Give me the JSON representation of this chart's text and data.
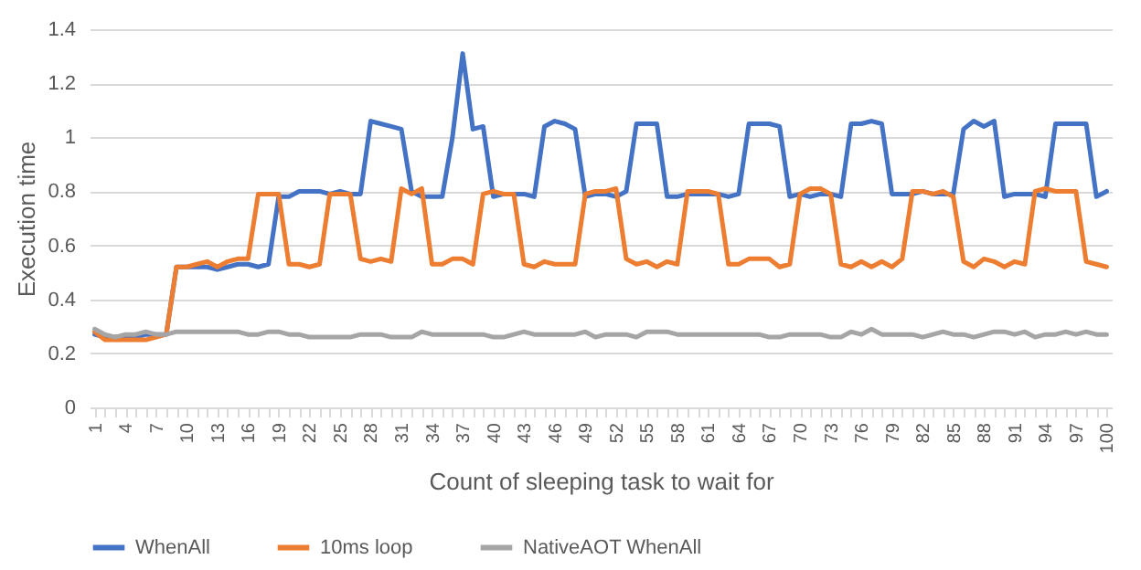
{
  "chart_data": {
    "type": "line",
    "xlabel": "Count of sleeping task to wait for",
    "ylabel": "Execution time",
    "categories": [
      "1",
      null,
      null,
      "4",
      null,
      null,
      "7",
      null,
      null,
      "10",
      null,
      null,
      "13",
      null,
      null,
      "16",
      null,
      null,
      "19",
      null,
      null,
      "22",
      null,
      null,
      "25",
      null,
      null,
      "28",
      null,
      null,
      "31",
      null,
      null,
      "34",
      null,
      null,
      "37",
      null,
      null,
      "40",
      null,
      null,
      "43",
      null,
      null,
      "46",
      null,
      null,
      "49",
      null,
      null,
      "52",
      null,
      null,
      "55",
      null,
      null,
      "58",
      null,
      null,
      "61",
      null,
      null,
      "64",
      null,
      null,
      "67",
      null,
      null,
      "70",
      null,
      null,
      "73",
      null,
      null,
      "76",
      null,
      null,
      "79",
      null,
      null,
      "82",
      null,
      null,
      "85",
      null,
      null,
      "88",
      null,
      null,
      "91",
      null,
      null,
      "94",
      null,
      null,
      "97",
      null,
      null,
      "100"
    ],
    "series": [
      {
        "name": "WhenAll",
        "color": "#4472c4",
        "values": [
          0.27,
          0.26,
          0.26,
          0.26,
          0.26,
          0.27,
          0.27,
          0.27,
          0.52,
          0.52,
          0.52,
          0.52,
          0.51,
          0.52,
          0.53,
          0.53,
          0.52,
          0.53,
          0.78,
          0.78,
          0.8,
          0.8,
          0.8,
          0.79,
          0.8,
          0.79,
          0.79,
          1.06,
          1.05,
          1.04,
          1.03,
          0.8,
          0.78,
          0.78,
          0.78,
          1.0,
          1.31,
          1.03,
          1.04,
          0.78,
          0.79,
          0.79,
          0.79,
          0.78,
          1.04,
          1.06,
          1.05,
          1.03,
          0.78,
          0.79,
          0.79,
          0.78,
          0.8,
          1.05,
          1.05,
          1.05,
          0.78,
          0.78,
          0.79,
          0.79,
          0.79,
          0.79,
          0.78,
          0.79,
          1.05,
          1.05,
          1.05,
          1.04,
          0.78,
          0.79,
          0.78,
          0.79,
          0.79,
          0.78,
          1.05,
          1.05,
          1.06,
          1.05,
          0.79,
          0.79,
          0.79,
          0.8,
          0.79,
          0.79,
          0.79,
          1.03,
          1.06,
          1.04,
          1.06,
          0.78,
          0.79,
          0.79,
          0.79,
          0.78,
          1.05,
          1.05,
          1.05,
          1.05,
          0.78,
          0.8
        ]
      },
      {
        "name": "10ms loop",
        "color": "#ed7d31",
        "values": [
          0.28,
          0.25,
          0.25,
          0.25,
          0.25,
          0.25,
          0.26,
          0.27,
          0.52,
          0.52,
          0.53,
          0.54,
          0.52,
          0.54,
          0.55,
          0.55,
          0.79,
          0.79,
          0.79,
          0.53,
          0.53,
          0.52,
          0.53,
          0.79,
          0.79,
          0.79,
          0.55,
          0.54,
          0.55,
          0.54,
          0.81,
          0.79,
          0.81,
          0.53,
          0.53,
          0.55,
          0.55,
          0.53,
          0.79,
          0.8,
          0.79,
          0.79,
          0.53,
          0.52,
          0.54,
          0.53,
          0.53,
          0.53,
          0.79,
          0.8,
          0.8,
          0.81,
          0.55,
          0.53,
          0.54,
          0.52,
          0.54,
          0.53,
          0.8,
          0.8,
          0.8,
          0.79,
          0.53,
          0.53,
          0.55,
          0.55,
          0.55,
          0.52,
          0.53,
          0.79,
          0.81,
          0.81,
          0.79,
          0.53,
          0.52,
          0.54,
          0.52,
          0.54,
          0.52,
          0.55,
          0.8,
          0.8,
          0.79,
          0.8,
          0.78,
          0.54,
          0.52,
          0.55,
          0.54,
          0.52,
          0.54,
          0.53,
          0.8,
          0.81,
          0.8,
          0.8,
          0.8,
          0.54,
          0.53,
          0.52
        ]
      },
      {
        "name": "NativeAOT WhenAll",
        "color": "#a5a5a5",
        "values": [
          0.29,
          0.27,
          0.26,
          0.27,
          0.27,
          0.28,
          0.27,
          0.27,
          0.28,
          0.28,
          0.28,
          0.28,
          0.28,
          0.28,
          0.28,
          0.27,
          0.27,
          0.28,
          0.28,
          0.27,
          0.27,
          0.26,
          0.26,
          0.26,
          0.26,
          0.26,
          0.27,
          0.27,
          0.27,
          0.26,
          0.26,
          0.26,
          0.28,
          0.27,
          0.27,
          0.27,
          0.27,
          0.27,
          0.27,
          0.26,
          0.26,
          0.27,
          0.28,
          0.27,
          0.27,
          0.27,
          0.27,
          0.27,
          0.28,
          0.26,
          0.27,
          0.27,
          0.27,
          0.26,
          0.28,
          0.28,
          0.28,
          0.27,
          0.27,
          0.27,
          0.27,
          0.27,
          0.27,
          0.27,
          0.27,
          0.27,
          0.26,
          0.26,
          0.27,
          0.27,
          0.27,
          0.27,
          0.26,
          0.26,
          0.28,
          0.27,
          0.29,
          0.27,
          0.27,
          0.27,
          0.27,
          0.26,
          0.27,
          0.28,
          0.27,
          0.27,
          0.26,
          0.27,
          0.28,
          0.28,
          0.27,
          0.28,
          0.26,
          0.27,
          0.27,
          0.28,
          0.27,
          0.28,
          0.27,
          0.27
        ]
      }
    ],
    "ylim": [
      0,
      1.4
    ],
    "yticks": [
      0,
      0.2,
      0.4,
      0.6,
      0.8,
      1,
      1.2,
      1.4
    ],
    "grid": "y",
    "legend": "bottom"
  }
}
